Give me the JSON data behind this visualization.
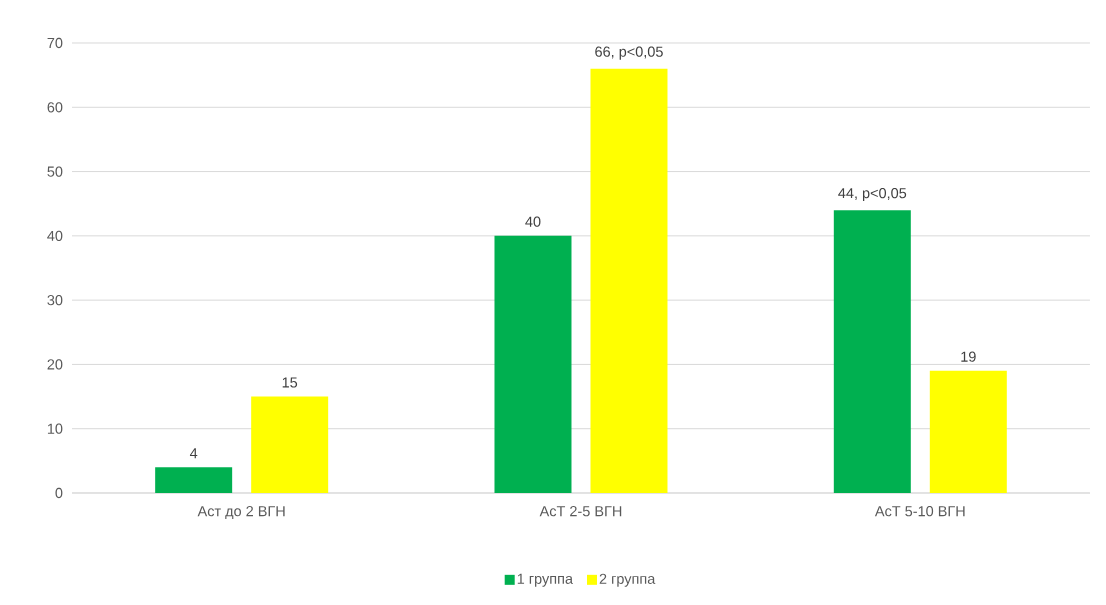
{
  "chart_data": {
    "type": "bar",
    "categories": [
      "Аст до 2 ВГН",
      "АсТ 2-5 ВГН",
      "АсТ 5-10 ВГН"
    ],
    "series": [
      {
        "name": "1 группа",
        "color": "#00b050",
        "values": [
          4,
          40,
          44
        ],
        "value_labels": [
          "4",
          "40",
          "44, p<0,05"
        ]
      },
      {
        "name": "2 группа",
        "color": "#ffff00",
        "values": [
          15,
          66,
          19
        ],
        "value_labels": [
          "15",
          "66, p<0,05",
          "19"
        ]
      }
    ],
    "ylim": [
      0,
      70
    ],
    "yticks": [
      0,
      10,
      20,
      30,
      40,
      50,
      60,
      70
    ],
    "grid": "y",
    "legend": "bottom"
  }
}
